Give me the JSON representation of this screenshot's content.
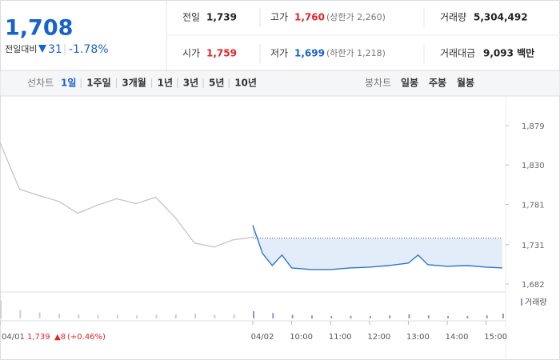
{
  "header": {
    "price": "1,708",
    "change_label": "전일대비",
    "change": "31",
    "change_pct": "-1.78%"
  },
  "stats": [
    {
      "label": "전일",
      "value": "1,739",
      "color": "#222222"
    },
    {
      "label": "고가",
      "value": "1,760",
      "extra": "(상한가 2,260)",
      "color": "#e6232a"
    },
    {
      "label": "거래량",
      "value": "5,304,492",
      "color": "#222222"
    },
    {
      "label": "시가",
      "value": "1,759",
      "color": "#e6232a"
    },
    {
      "label": "저가",
      "value": "1,699",
      "extra": "(하한가 1,218)",
      "color": "#1762cc"
    },
    {
      "label": "거래대금",
      "value": "9,093 백만",
      "color": "#222222"
    }
  ],
  "tabs": {
    "line_label": "선차트",
    "periods": [
      "1일",
      "1주일",
      "3개월",
      "1년",
      "3년",
      "5년",
      "10년"
    ],
    "active": 0,
    "candle_label": "봉차트",
    "candles": [
      "일봉",
      "주봉",
      "월봉"
    ]
  },
  "chart": {
    "type": "line",
    "xlim": [
      0,
      780
    ],
    "ylim": [
      1670,
      1895
    ],
    "yticks": [
      {
        "value": 1879,
        "label": "1,879"
      },
      {
        "value": 1830,
        "label": "1,830"
      },
      {
        "value": 1781,
        "label": "1,781"
      },
      {
        "value": 1731,
        "label": "1,731"
      },
      {
        "value": 1682,
        "label": "1,682"
      }
    ],
    "xticks": [
      {
        "value": 0,
        "label": "04/01"
      },
      {
        "value": 390,
        "label": "04/02"
      },
      {
        "value": 450,
        "label": "10:00"
      },
      {
        "value": 510,
        "label": "11:00"
      },
      {
        "value": 570,
        "label": "12:00"
      },
      {
        "value": 630,
        "label": "13:00"
      },
      {
        "value": 690,
        "label": "14:00"
      },
      {
        "value": 750,
        "label": "15:00"
      }
    ],
    "previous_close": 1739,
    "series": [
      {
        "name": "04/01",
        "color": "#c8c8c8",
        "x": [
          0,
          30,
          60,
          90,
          120,
          150,
          180,
          210,
          240,
          270,
          300,
          330,
          360,
          390
        ],
        "values": [
          1858,
          1800,
          1792,
          1785,
          1770,
          1780,
          1788,
          1782,
          1790,
          1765,
          1733,
          1728,
          1737,
          1740
        ]
      },
      {
        "name": "04/02",
        "color": "#2f74d0",
        "x": [
          390,
          405,
          420,
          435,
          450,
          480,
          510,
          540,
          570,
          600,
          630,
          645,
          660,
          690,
          720,
          750,
          775
        ],
        "values": [
          1755,
          1720,
          1705,
          1718,
          1702,
          1700,
          1700,
          1702,
          1703,
          1705,
          1708,
          1718,
          1706,
          1704,
          1705,
          1703,
          1702
        ]
      }
    ],
    "volume_label": "거래량",
    "volume": {
      "x": [
        0,
        30,
        60,
        90,
        120,
        150,
        180,
        210,
        240,
        270,
        300,
        330,
        360,
        390,
        420,
        450,
        480,
        510,
        540,
        570,
        600,
        630,
        660,
        690,
        720,
        750,
        775
      ],
      "values": [
        30,
        14,
        10,
        8,
        7,
        6,
        6,
        5,
        6,
        7,
        8,
        6,
        7,
        12,
        9,
        6,
        5,
        4,
        4,
        4,
        5,
        7,
        5,
        4,
        4,
        5,
        8
      ],
      "max": 40
    },
    "footer": {
      "date": "04/01",
      "close": "1,739",
      "change": "▲8",
      "pct": "(+0.46%)"
    }
  }
}
